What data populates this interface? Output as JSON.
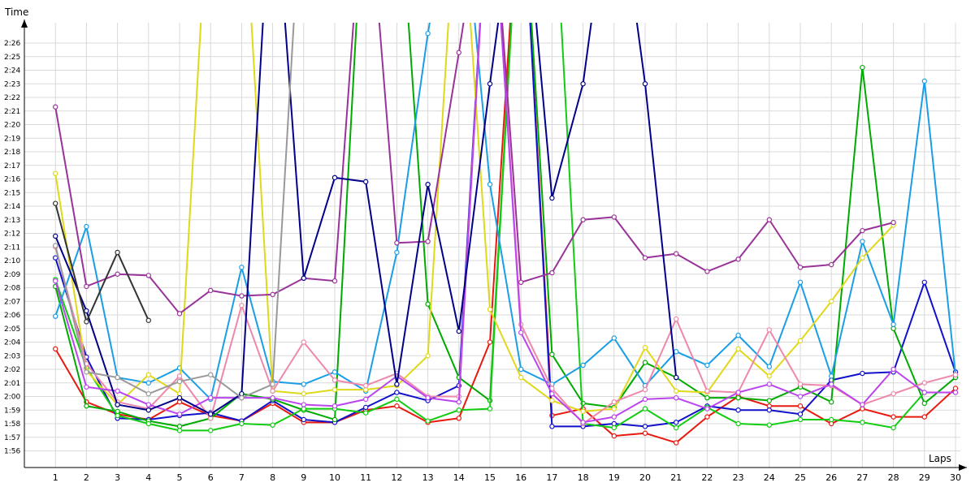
{
  "chart_data": {
    "type": "line",
    "xlabel": "Laps",
    "ylabel": "Time",
    "x": [
      1,
      2,
      3,
      4,
      5,
      6,
      7,
      8,
      9,
      10,
      11,
      12,
      13,
      14,
      15,
      16,
      17,
      18,
      19,
      20,
      21,
      22,
      23,
      24,
      25,
      26,
      27,
      28,
      29,
      30
    ],
    "xlim": [
      0,
      30
    ],
    "ylim_seconds": [
      114,
      148
    ],
    "y_tick_seconds": [
      116,
      117,
      118,
      119,
      120,
      121,
      122,
      123,
      124,
      125,
      126,
      127,
      128,
      129,
      130,
      131,
      132,
      133,
      134,
      135,
      136,
      137,
      138,
      139,
      140,
      141,
      142,
      143,
      144,
      145,
      146
    ],
    "y_tick_labels": [
      "1:56",
      "1:57",
      "1:58",
      "1:59",
      "2:00",
      "2:01",
      "2:02",
      "2:03",
      "2:04",
      "2:05",
      "2:06",
      "2:07",
      "2:08",
      "2:09",
      "2:10",
      "2:11",
      "2:12",
      "2:13",
      "2:14",
      "2:15",
      "2:16",
      "2:17",
      "2:18",
      "2:19",
      "2:20",
      "2:21",
      "2:22",
      "2:23",
      "2:24",
      "2:25",
      "2:26"
    ],
    "grid": true,
    "legend": "none",
    "series": [
      {
        "color": "#e8190f",
        "values": [
          123.5,
          119.6,
          118.7,
          118.3,
          119.6,
          118.6,
          118.2,
          119.5,
          118.1,
          118.1,
          119.0,
          119.3,
          118.1,
          118.4,
          124.0,
          160,
          118.6,
          119.1,
          117.1,
          117.3,
          116.6,
          118.5,
          120.0,
          119.3,
          119.3,
          118.0,
          119.1,
          118.5,
          118.5,
          120.6
        ]
      },
      {
        "color": "#1111cc",
        "values": [
          130.2,
          122.9,
          118.4,
          118.3,
          118.6,
          118.8,
          118.2,
          119.7,
          118.3,
          118.1,
          119.2,
          120.3,
          119.7,
          120.8,
          160,
          160,
          117.8,
          117.8,
          118.0,
          117.8,
          118.1,
          119.3,
          119.0,
          119.0,
          118.7,
          121.2,
          121.7,
          121.8,
          128.4,
          121.8
        ]
      },
      {
        "color": "#00aa00",
        "values": [
          128.1,
          119.3,
          118.9,
          118.2,
          117.8,
          118.4,
          120.2,
          119.8,
          119.0,
          118.3,
          160,
          160,
          126.8,
          121.4,
          119.7,
          160,
          123.1,
          119.5,
          119.2,
          122.5,
          121.4,
          119.9,
          119.9,
          119.7,
          120.7,
          119.6,
          144.2,
          125.0,
          119.5,
          121.4
        ]
      },
      {
        "color": "#11cc11",
        "values": [
          128.6,
          122.1,
          118.6,
          118.0,
          117.5,
          117.5,
          118.0,
          117.9,
          119.1,
          119.1,
          118.8,
          119.8,
          118.2,
          119.0,
          119.1,
          160,
          160,
          118.0,
          117.7,
          119.1,
          117.7,
          119.2,
          118.0,
          117.9,
          118.3,
          118.3,
          118.1,
          117.7,
          120.3,
          120.3
        ]
      },
      {
        "color": "#1a9ee6",
        "values": [
          125.9,
          132.5,
          121.4,
          121.0,
          122.1,
          119.8,
          129.5,
          121.1,
          120.9,
          121.8,
          120.4,
          130.6,
          146.7,
          160,
          135.6,
          122.0,
          120.9,
          122.3,
          124.3,
          120.8,
          123.3,
          122.3,
          124.5,
          122.2,
          128.4,
          121.5,
          131.4,
          125.3,
          143.2,
          121.6
        ]
      },
      {
        "color": "#e0d81a",
        "values": [
          136.4,
          121.9,
          119.4,
          121.6,
          120.2,
          160,
          160,
          120.4,
          120.2,
          120.5,
          120.5,
          120.8,
          123.0,
          160,
          126.4,
          121.4,
          119.7,
          118.9,
          119.1,
          123.6,
          120.4,
          120.3,
          123.5,
          121.5,
          124.1,
          127.0,
          130.2,
          132.6,
          null,
          null
        ]
      },
      {
        "color": "#ee88aa",
        "values": [
          131.0,
          122.4,
          119.6,
          119.1,
          121.5,
          118.4,
          126.7,
          120.4,
          124.0,
          121.2,
          120.8,
          121.7,
          120.0,
          120.0,
          160,
          125.3,
          120.6,
          118.0,
          119.6,
          120.5,
          125.7,
          120.4,
          120.3,
          124.9,
          120.9,
          120.8,
          119.4,
          120.2,
          121.0,
          121.6
        ]
      },
      {
        "color": "#bb44ee",
        "values": [
          128.5,
          120.7,
          120.4,
          119.4,
          118.7,
          119.9,
          119.9,
          119.9,
          119.4,
          119.3,
          119.8,
          121.5,
          119.9,
          119.6,
          160,
          124.7,
          120.2,
          118.1,
          118.5,
          119.8,
          119.9,
          119.1,
          120.3,
          120.9,
          120.0,
          120.9,
          119.4,
          122.0,
          120.3,
          120.3
        ]
      },
      {
        "color": "#993399",
        "values": [
          141.3,
          128.1,
          129.0,
          128.9,
          126.1,
          127.8,
          127.4,
          127.5,
          128.7,
          128.5,
          160,
          131.3,
          131.4,
          145.3,
          160,
          128.4,
          129.1,
          133.0,
          133.2,
          130.2,
          130.5,
          129.2,
          130.1,
          133.0,
          129.5,
          129.7,
          132.2,
          132.8,
          null,
          null
        ]
      },
      {
        "color": "#000088",
        "values": [
          131.8,
          126.3,
          119.4,
          119.0,
          119.9,
          118.7,
          120.2,
          160,
          128.7,
          136.1,
          135.8,
          120.9,
          135.6,
          124.8,
          143.0,
          160,
          134.6,
          143.0,
          160,
          143.0,
          121.4,
          null,
          null,
          null,
          null,
          null,
          null,
          null,
          null,
          null
        ]
      },
      {
        "color": "#999999",
        "values": [
          131.1,
          121.8,
          121.4,
          120.2,
          121.1,
          121.6,
          119.9,
          120.9,
          160,
          null,
          null,
          null,
          null,
          null,
          null,
          null,
          null,
          null,
          null,
          null,
          null,
          null,
          null,
          null,
          null,
          null,
          null,
          null,
          null,
          null
        ]
      },
      {
        "color": "#333333",
        "values": [
          134.2,
          125.5,
          130.6,
          125.6,
          null,
          null,
          null,
          null,
          null,
          null,
          null,
          null,
          null,
          null,
          null,
          null,
          null,
          null,
          null,
          null,
          null,
          null,
          null,
          null,
          null,
          null,
          null,
          null,
          null,
          null
        ]
      }
    ]
  }
}
